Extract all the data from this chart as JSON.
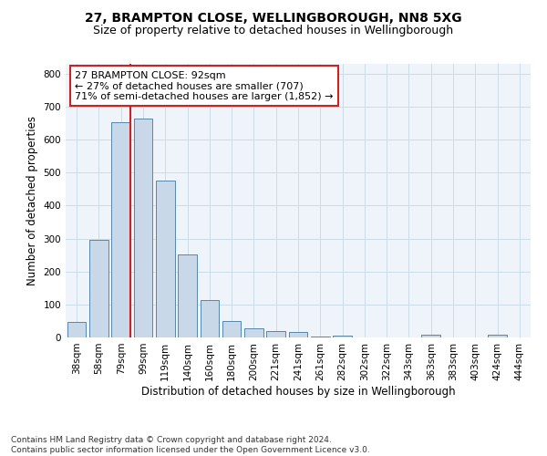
{
  "title1": "27, BRAMPTON CLOSE, WELLINGBOROUGH, NN8 5XG",
  "title2": "Size of property relative to detached houses in Wellingborough",
  "xlabel": "Distribution of detached houses by size in Wellingborough",
  "ylabel": "Number of detached properties",
  "categories": [
    "38sqm",
    "58sqm",
    "79sqm",
    "99sqm",
    "119sqm",
    "140sqm",
    "160sqm",
    "180sqm",
    "200sqm",
    "221sqm",
    "241sqm",
    "261sqm",
    "282sqm",
    "302sqm",
    "322sqm",
    "343sqm",
    "363sqm",
    "383sqm",
    "403sqm",
    "424sqm",
    "444sqm"
  ],
  "values": [
    47,
    295,
    653,
    665,
    475,
    252,
    113,
    50,
    27,
    18,
    16,
    2,
    5,
    0,
    1,
    0,
    9,
    0,
    1,
    8,
    0
  ],
  "bar_color": "#c8d8e8",
  "bar_edge_color": "#5588aa",
  "vline_color": "#cc2222",
  "annotation_text": "27 BRAMPTON CLOSE: 92sqm\n← 27% of detached houses are smaller (707)\n71% of semi-detached houses are larger (1,852) →",
  "annotation_box_color": "#ffffff",
  "annotation_box_edge": "#cc2222",
  "ylim": [
    0,
    830
  ],
  "yticks": [
    0,
    100,
    200,
    300,
    400,
    500,
    600,
    700,
    800
  ],
  "grid_color": "#ccdde8",
  "bg_color": "#eef4fa",
  "footer": "Contains HM Land Registry data © Crown copyright and database right 2024.\nContains public sector information licensed under the Open Government Licence v3.0.",
  "title1_fontsize": 10,
  "title2_fontsize": 9,
  "xlabel_fontsize": 8.5,
  "ylabel_fontsize": 8.5,
  "tick_fontsize": 7.5,
  "annotation_fontsize": 8,
  "footer_fontsize": 6.5
}
